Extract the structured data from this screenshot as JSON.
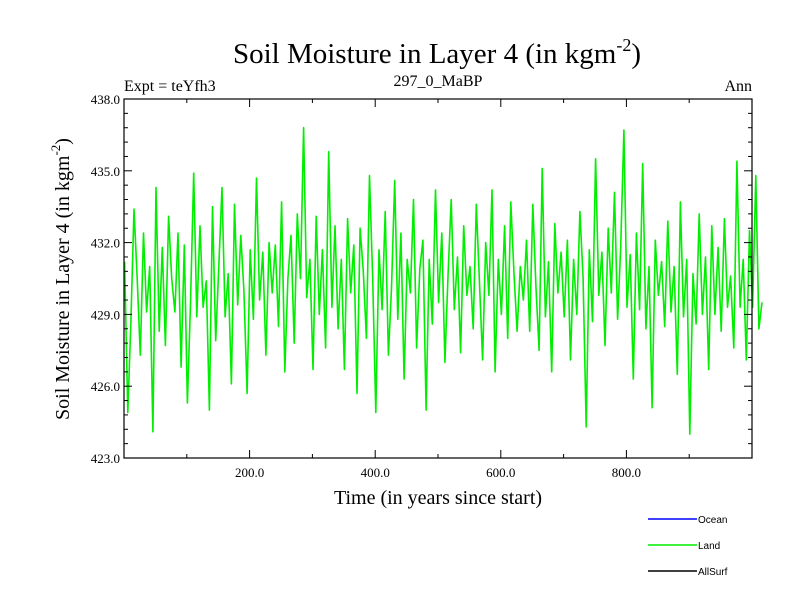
{
  "chart_data": {
    "type": "line",
    "title": "Soil Moisture in Layer 4 (in kgm",
    "title_sup": "-2",
    "title_close": ")",
    "subtitle_left": "Expt = teYfh3",
    "subtitle_center": "297_0_MaBP",
    "subtitle_right": "Ann",
    "xlabel": "Time (in years since start)",
    "ylabel": "Soil Moisture in Layer 4 (in kgm",
    "ylabel_sup": "-2",
    "ylabel_close": ")",
    "xlim": [
      0,
      1000
    ],
    "ylim": [
      423.0,
      438.0
    ],
    "x_ticks": [
      {
        "value": 200,
        "label": "200.0"
      },
      {
        "value": 400,
        "label": "400.0"
      },
      {
        "value": 600,
        "label": "600.0"
      },
      {
        "value": 800,
        "label": "800.0"
      }
    ],
    "y_ticks": [
      {
        "value": 423,
        "label": "423.0"
      },
      {
        "value": 426,
        "label": "426.0"
      },
      {
        "value": 429,
        "label": "429.0"
      },
      {
        "value": 432,
        "label": "432.0"
      },
      {
        "value": 435,
        "label": "435.0"
      },
      {
        "value": 438,
        "label": "438.0"
      }
    ],
    "series": [
      {
        "name": "Ocean",
        "color": "#0000ff",
        "values": []
      },
      {
        "name": "Land",
        "color": "#00ee00",
        "x_start": 1,
        "x_step": 5,
        "values": [
          431.2,
          424.9,
          428.7,
          433.4,
          430.5,
          427.3,
          432.4,
          429.1,
          431.0,
          424.1,
          434.3,
          428.3,
          431.8,
          427.7,
          433.1,
          430.5,
          429.1,
          432.4,
          426.8,
          431.9,
          425.3,
          429.6,
          434.9,
          428.9,
          432.7,
          429.3,
          430.4,
          425.0,
          433.5,
          427.9,
          431.0,
          434.3,
          428.9,
          430.7,
          426.1,
          433.6,
          429.4,
          432.3,
          430.0,
          425.7,
          431.7,
          428.8,
          434.7,
          429.6,
          431.6,
          427.3,
          432.0,
          429.9,
          431.9,
          428.5,
          433.7,
          426.6,
          430.5,
          432.3,
          427.8,
          433.2,
          430.5,
          436.8,
          429.7,
          431.3,
          426.7,
          433.1,
          429.0,
          431.7,
          427.6,
          435.8,
          429.3,
          432.7,
          428.4,
          431.3,
          426.7,
          433.0,
          429.9,
          431.9,
          425.7,
          432.6,
          430.8,
          428.0,
          434.8,
          430.5,
          424.9,
          431.7,
          429.2,
          433.3,
          427.3,
          430.1,
          434.6,
          428.8,
          432.4,
          426.3,
          431.3,
          429.9,
          433.8,
          427.6,
          430.9,
          432.1,
          425.0,
          431.3,
          428.6,
          434.2,
          429.5,
          432.4,
          427.0,
          430.6,
          433.8,
          429.2,
          431.4,
          427.4,
          432.7,
          429.8,
          431.0,
          428.4,
          433.6,
          430.4,
          427.1,
          432.0,
          429.8,
          434.2,
          426.6,
          431.3,
          429.0,
          432.7,
          428.0,
          433.7,
          430.7,
          428.3,
          431.0,
          429.6,
          432.1,
          428.3,
          433.6,
          430.1,
          427.5,
          435.1,
          428.9,
          431.2,
          426.6,
          432.8,
          429.9,
          431.6,
          428.9,
          432.1,
          427.1,
          431.3,
          429.0,
          433.3,
          430.5,
          424.3,
          431.7,
          428.7,
          435.5,
          429.8,
          431.6,
          427.7,
          432.6,
          429.9,
          434.1,
          428.8,
          431.8,
          436.7,
          429.3,
          431.5,
          426.3,
          432.4,
          429.2,
          435.3,
          428.4,
          431.0,
          425.1,
          432.1,
          429.8,
          431.2,
          428.5,
          432.9,
          429.1,
          431.0,
          426.5,
          433.7,
          428.9,
          431.3,
          424.0,
          430.7,
          428.6,
          433.2,
          429.0,
          431.4,
          426.7,
          432.7,
          429.0,
          431.8,
          428.3,
          433.0,
          429.3,
          430.6,
          427.6,
          435.4,
          429.3,
          431.3,
          427.1,
          432.5,
          429.3,
          434.8,
          428.4,
          429.5
        ]
      },
      {
        "name": "AllSurf",
        "color": "#000000",
        "values": []
      }
    ],
    "legend_position": "bottom-right",
    "grid": false
  }
}
